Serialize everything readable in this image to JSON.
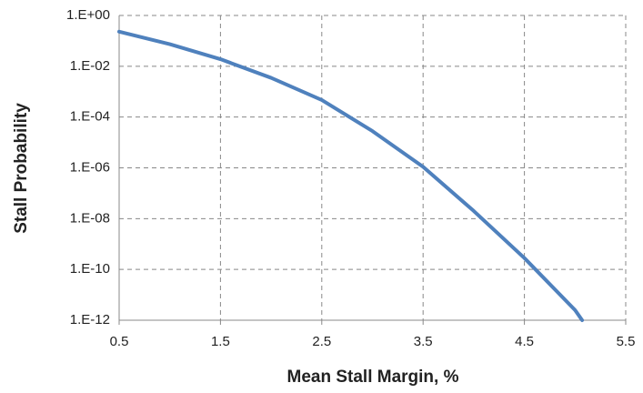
{
  "chart_data": {
    "type": "line",
    "x_label": "Mean Stall Margin, %",
    "y_label": "Stall Probability",
    "yscale": "log",
    "grid": true,
    "xlim": [
      0.5,
      5.5
    ],
    "xticks": [
      0.5,
      1.5,
      2.5,
      3.5,
      4.5,
      5.5
    ],
    "ylim": [
      1e-12,
      1
    ],
    "yticks": [
      {
        "value": 1e-12,
        "label": "1.E-12"
      },
      {
        "value": 1e-10,
        "label": "1.E-10"
      },
      {
        "value": 1e-08,
        "label": "1.E-08"
      },
      {
        "value": 1e-06,
        "label": "1.E-06"
      },
      {
        "value": 0.0001,
        "label": "1.E-04"
      },
      {
        "value": 0.01,
        "label": "1.E-02"
      },
      {
        "value": 1,
        "label": "1.E+00"
      }
    ],
    "x": [
      0.5,
      1.0,
      1.5,
      2.0,
      2.5,
      3.0,
      3.5,
      4.0,
      4.5,
      5.0,
      5.07
    ],
    "series": [
      {
        "color": "#4f81bd",
        "values": [
          0.23,
          0.074,
          0.019,
          0.0035,
          0.00047,
          2.8e-05,
          1.1e-06,
          2e-08,
          2.8e-10,
          2.5e-12,
          1e-12
        ]
      }
    ]
  }
}
